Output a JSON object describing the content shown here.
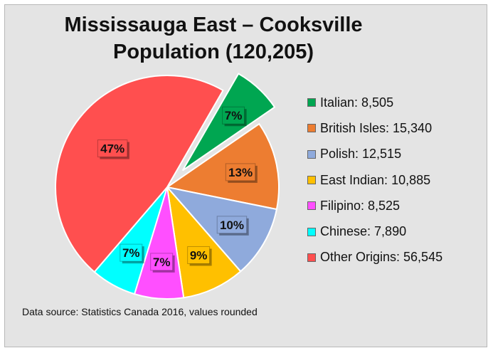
{
  "chart_data": {
    "type": "pie",
    "title_line1": "Mississauga East – Cooksville",
    "title_line2": "Population (120,205)",
    "slices": [
      {
        "label": "Italian",
        "value": 8505,
        "legend": "Italian: 8,505",
        "pct_label": "7%",
        "color": "#00a651",
        "exploded": true
      },
      {
        "label": "British Isles",
        "value": 15340,
        "legend": "British Isles: 15,340",
        "pct_label": "13%",
        "color": "#ed7d31",
        "exploded": false
      },
      {
        "label": "Polish",
        "value": 12515,
        "legend": "Polish: 12,515",
        "pct_label": "10%",
        "color": "#8faadc",
        "exploded": false
      },
      {
        "label": "East Indian",
        "value": 10885,
        "legend": "East Indian: 10,885",
        "pct_label": "9%",
        "color": "#ffc000",
        "exploded": false
      },
      {
        "label": "Filipino",
        "value": 8525,
        "legend": "Filipino: 8,525",
        "pct_label": "7%",
        "color": "#ff4fff",
        "exploded": false
      },
      {
        "label": "Chinese",
        "value": 7890,
        "legend": "Chinese: 7,890",
        "pct_label": "7%",
        "color": "#00ffff",
        "exploded": false
      },
      {
        "label": "Other Origins",
        "value": 56545,
        "legend": "Other Origins: 56,545",
        "pct_label": "47%",
        "color": "#ff4f4f",
        "exploded": false
      }
    ],
    "legend_position": "right",
    "source": "Data source: Statistics Canada 2016, values rounded"
  }
}
